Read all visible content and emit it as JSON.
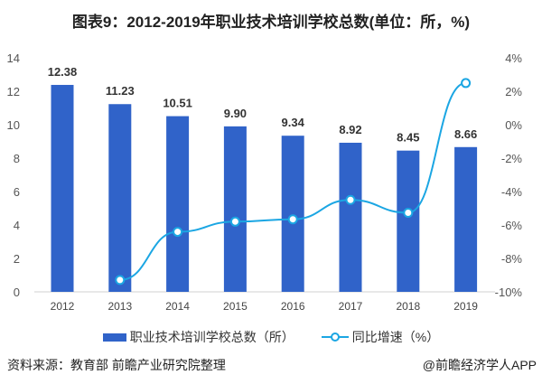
{
  "title": "图表9：2012-2019年职业技术培训学校总数(单位：所，%)",
  "chart_data": {
    "type": "bar+line",
    "title": "图表9：2012-2019年职业技术培训学校总数(单位：所，%)",
    "categories": [
      "2012",
      "2013",
      "2014",
      "2015",
      "2016",
      "2017",
      "2018",
      "2019"
    ],
    "series": [
      {
        "name": "职业技术培训学校总数（所）",
        "type": "bar",
        "axis": "left",
        "values": [
          12.38,
          11.23,
          10.51,
          9.9,
          9.34,
          8.92,
          8.45,
          8.66
        ],
        "labels": [
          "12.38",
          "11.23",
          "10.51",
          "9.90",
          "9.34",
          "8.92",
          "8.45",
          "8.66"
        ],
        "color": "#3063c9"
      },
      {
        "name": "同比增速（%）",
        "type": "line",
        "axis": "right",
        "values": [
          null,
          -9.29,
          -6.41,
          -5.8,
          -5.66,
          -4.5,
          -5.27,
          2.49
        ],
        "color": "#1ba6e3"
      }
    ],
    "left_axis": {
      "ylim": [
        0,
        14
      ],
      "ticks": [
        "0",
        "2",
        "4",
        "6",
        "8",
        "10",
        "12",
        "14"
      ]
    },
    "right_axis": {
      "ylim": [
        -10,
        4
      ],
      "ticks": [
        "-10%",
        "-8%",
        "-6%",
        "-4%",
        "-2%",
        "0%",
        "2%",
        "4%"
      ]
    },
    "legend_placement": "bottom"
  },
  "footer": {
    "source": "资料来源：教育部 前瞻产业研究院整理",
    "brand": "@前瞻经济学人APP"
  }
}
